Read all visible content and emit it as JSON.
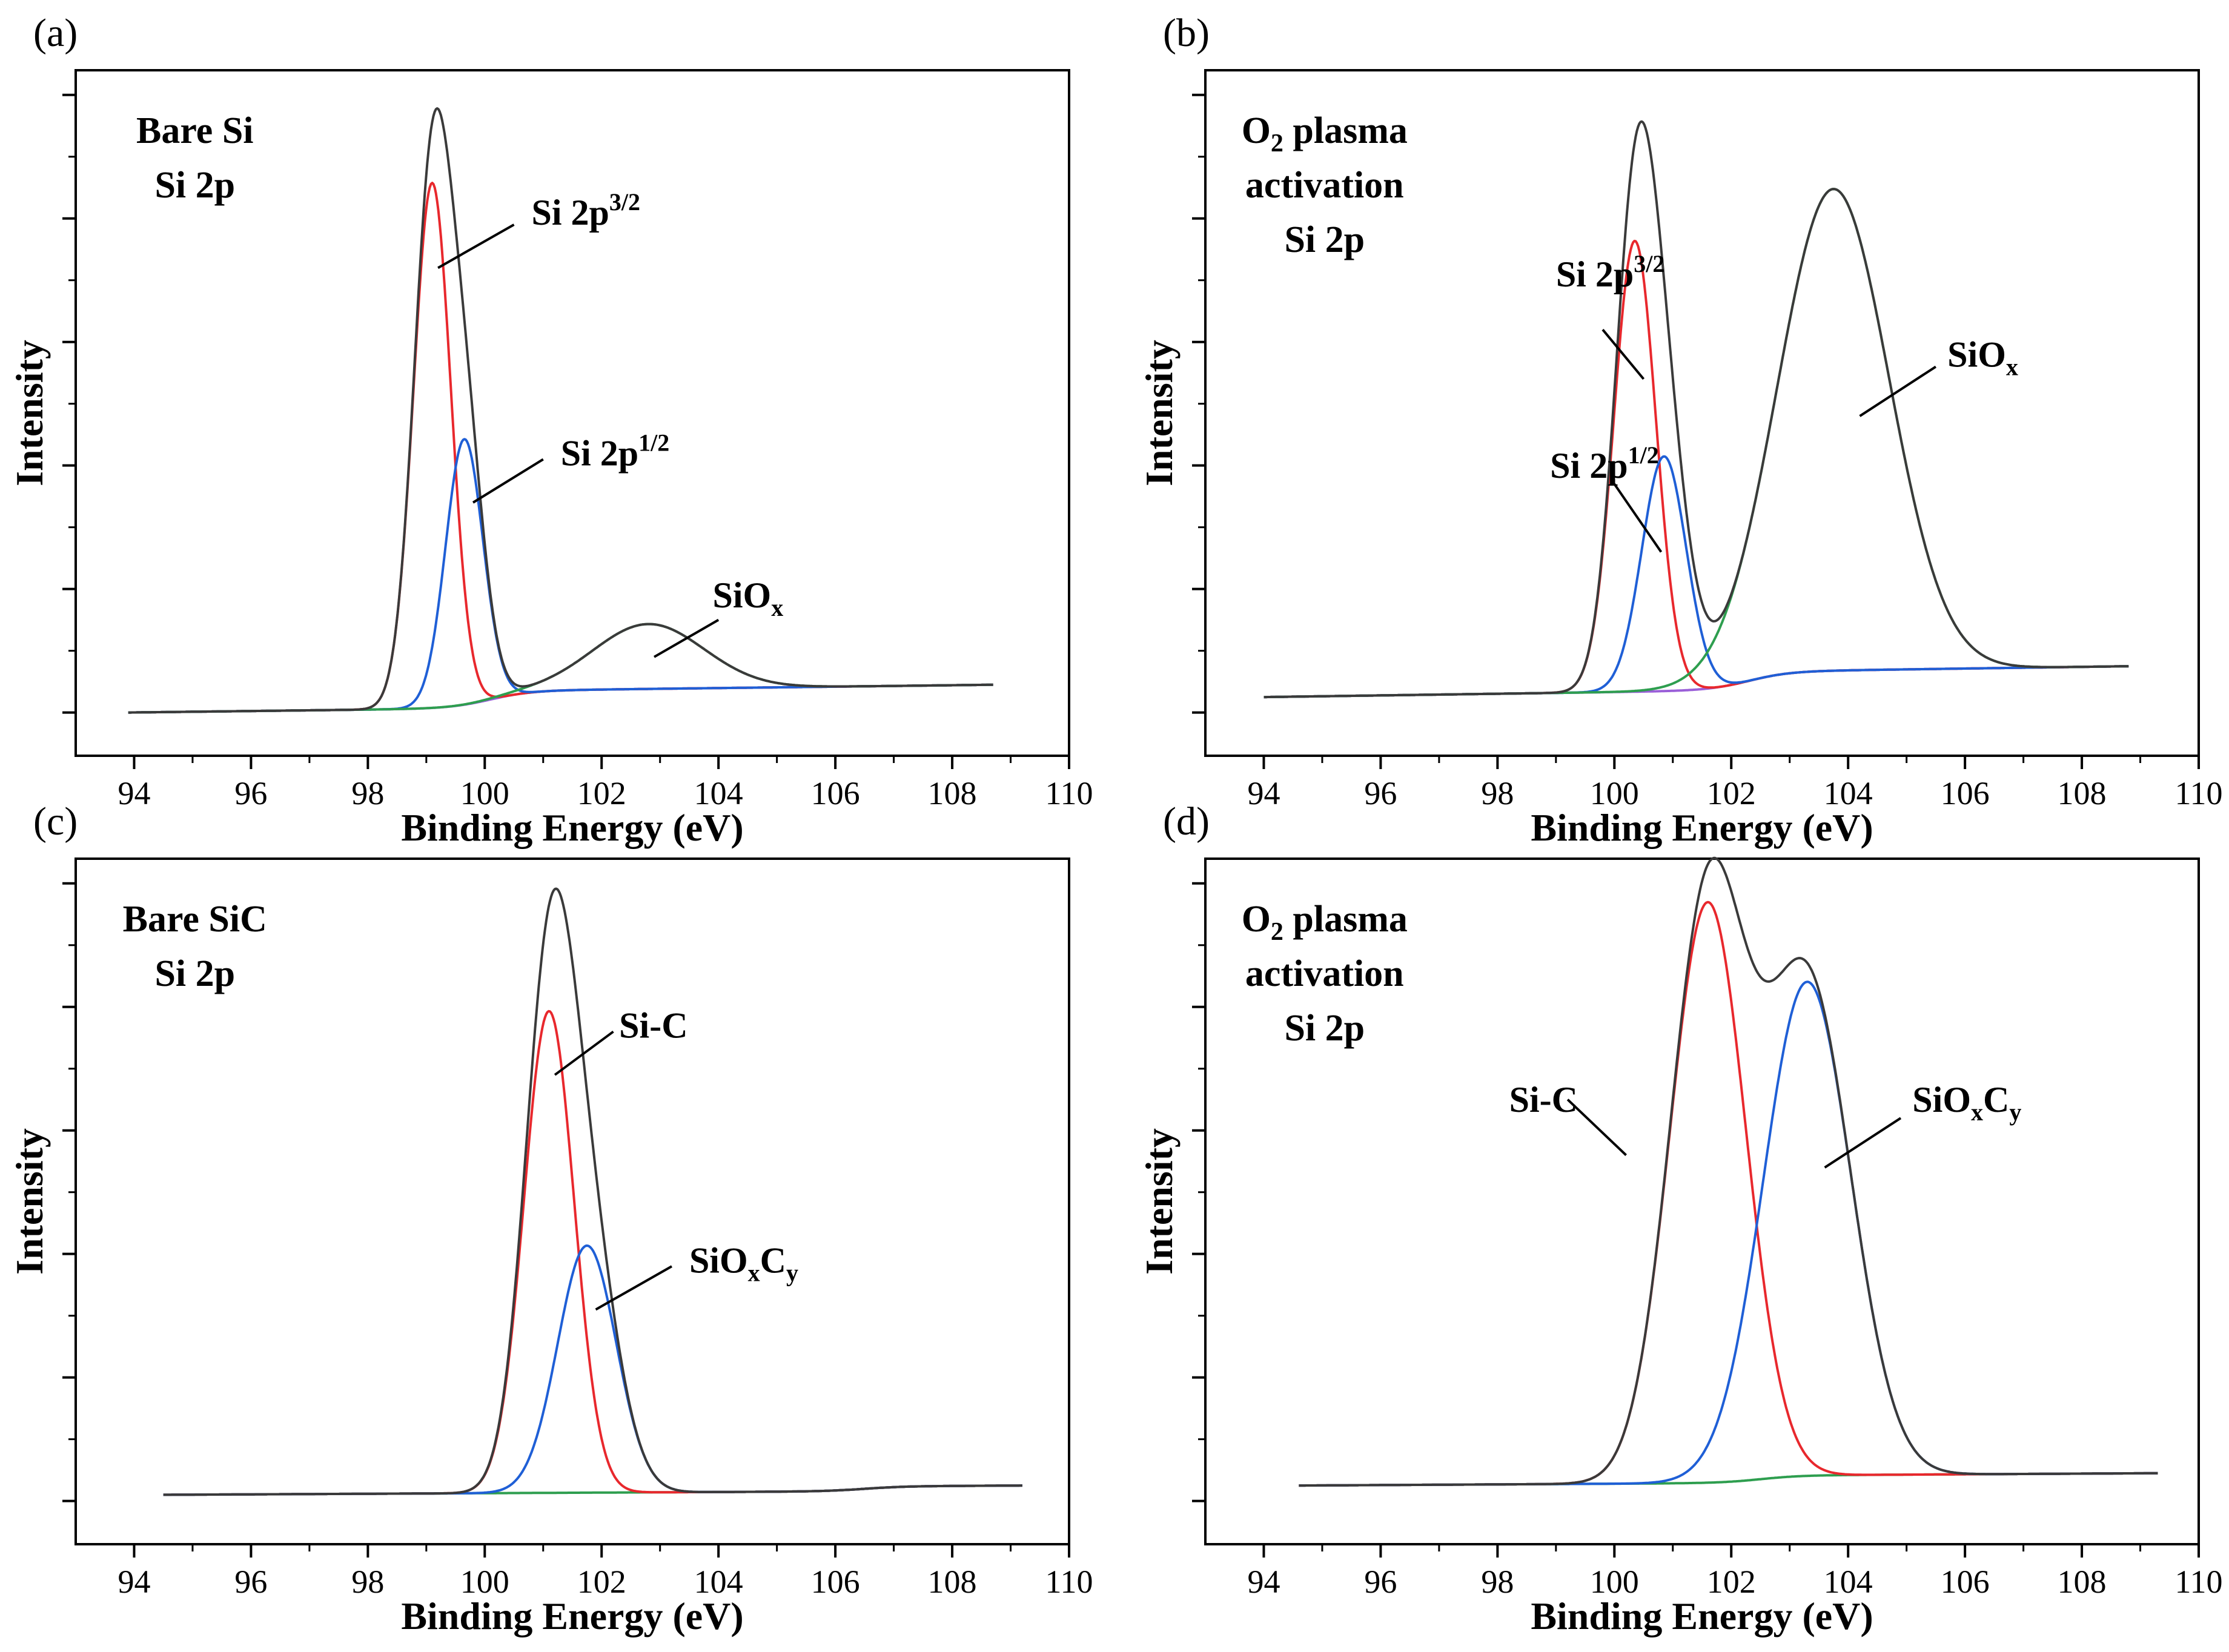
{
  "chart_data": [
    {
      "type": "line",
      "panel_label": "(a)",
      "title_lines": [
        "Bare Si",
        "Si 2p"
      ],
      "xlabel": "Binding Energy (eV)",
      "ylabel": "Intensity",
      "xlim": [
        93,
        110
      ],
      "ylim": [
        -0.06,
        1.05
      ],
      "xticks": [
        94,
        96,
        98,
        100,
        102,
        104,
        106,
        108,
        110
      ],
      "xtick_labels": [
        "94",
        "96",
        "98",
        "100",
        "102",
        "104",
        "106",
        "108",
        "110"
      ],
      "yticks": [
        0.01,
        0.21,
        0.41,
        0.61,
        0.81,
        1.01
      ],
      "x_range": [
        93.9,
        108.7
      ],
      "background": {
        "start": 0.01,
        "end": 0.055,
        "step_center": 100.1,
        "step": 0.028
      },
      "series": [
        {
          "name": "Si 2p3/2",
          "color": "#e8282d",
          "components": [
            {
              "center": 99.1,
              "amp": 0.85,
              "width": 0.32
            }
          ]
        },
        {
          "name": "Si 2p1/2",
          "color": "#1f5fd6",
          "components": [
            {
              "center": 99.65,
              "amp": 0.43,
              "width": 0.32
            }
          ]
        },
        {
          "name": "SiOx",
          "color": "#2e9e4f",
          "components": [
            {
              "center": 102.8,
              "amp": 0.105,
              "width": 0.95
            }
          ]
        },
        {
          "name": "Background",
          "color": "#9a5fd8",
          "components": []
        },
        {
          "name": "Envelope",
          "color": "#3a3a3a",
          "components": "sum"
        }
      ],
      "annotations": [
        {
          "base": "Si 2p",
          "sup": "3/2",
          "sub": "",
          "x": 100.8,
          "y": 0.8,
          "line": [
            [
              99.2,
              0.73
            ],
            [
              100.5,
              0.8
            ]
          ]
        },
        {
          "base": "Si 2p",
          "sup": "1/2",
          "sub": "",
          "x": 101.3,
          "y": 0.41,
          "line": [
            [
              99.8,
              0.35
            ],
            [
              101.0,
              0.42
            ]
          ]
        },
        {
          "base": "SiO",
          "sup": "",
          "sub": "x",
          "x": 103.9,
          "y": 0.18,
          "line": [
            [
              102.9,
              0.1
            ],
            [
              104.0,
              0.16
            ]
          ]
        }
      ]
    },
    {
      "type": "line",
      "panel_label": "(b)",
      "title_lines": [
        "O2 plasma",
        "activation",
        "Si 2p"
      ],
      "xlabel": "Binding Energy (eV)",
      "ylabel": "Intensity",
      "xlim": [
        93,
        110
      ],
      "ylim": [
        -0.06,
        1.05
      ],
      "xticks": [
        94,
        96,
        98,
        100,
        102,
        104,
        106,
        108,
        110
      ],
      "xtick_labels": [
        "94",
        "96",
        "98",
        "100",
        "102",
        "104",
        "106",
        "108",
        "110"
      ],
      "yticks": [
        0.01,
        0.21,
        0.41,
        0.61,
        0.81,
        1.01
      ],
      "x_range": [
        94.0,
        108.8
      ],
      "background": {
        "start": 0.035,
        "end": 0.085,
        "step_center": 102.3,
        "step": 0.03
      },
      "series": [
        {
          "name": "Si 2p3/2",
          "color": "#e8282d",
          "components": [
            {
              "center": 100.35,
              "amp": 0.73,
              "width": 0.36
            }
          ]
        },
        {
          "name": "Si 2p1/2",
          "color": "#1f5fd6",
          "components": [
            {
              "center": 100.85,
              "amp": 0.38,
              "width": 0.38
            }
          ]
        },
        {
          "name": "SiOx",
          "color": "#2e9e4f",
          "components": [
            {
              "center": 103.75,
              "amp": 0.78,
              "width": 0.95
            }
          ]
        },
        {
          "name": "Background",
          "color": "#9a5fd8",
          "components": []
        },
        {
          "name": "Envelope",
          "color": "#3a3a3a",
          "components": "sum"
        }
      ],
      "annotations": [
        {
          "base": "Si 2p",
          "sup": "3/2",
          "sub": "",
          "x": 99.0,
          "y": 0.7,
          "line": [
            [
              99.8,
              0.63
            ],
            [
              100.5,
              0.55
            ]
          ]
        },
        {
          "base": "Si 2p",
          "sup": "1/2",
          "sub": "",
          "x": 98.9,
          "y": 0.39,
          "line": [
            [
              100.0,
              0.38
            ],
            [
              100.8,
              0.27
            ]
          ]
        },
        {
          "base": "SiO",
          "sup": "",
          "sub": "x",
          "x": 105.7,
          "y": 0.57,
          "line": [
            [
              104.2,
              0.49
            ],
            [
              105.5,
              0.57
            ]
          ]
        }
      ],
      "title_subscript": {
        "line": 0,
        "after": "O",
        "text": "2"
      }
    },
    {
      "type": "line",
      "panel_label": "(c)",
      "title_lines": [
        "Bare SiC",
        "Si 2p"
      ],
      "xlabel": "Binding Energy (eV)",
      "ylabel": "Intensity",
      "xlim": [
        93,
        110
      ],
      "ylim": [
        -0.06,
        1.05
      ],
      "xticks": [
        94,
        96,
        98,
        100,
        102,
        104,
        106,
        108,
        110
      ],
      "xtick_labels": [
        "94",
        "96",
        "98",
        "100",
        "102",
        "104",
        "106",
        "108",
        "110"
      ],
      "yticks": [
        0.01,
        0.21,
        0.41,
        0.61,
        0.81,
        1.01
      ],
      "x_range": [
        94.5,
        109.2
      ],
      "background": {
        "start": 0.02,
        "end": 0.035,
        "step_center": 106.5,
        "step": 0.008
      },
      "series": [
        {
          "name": "Si-C",
          "color": "#e8282d",
          "components": [
            {
              "center": 101.1,
              "amp": 0.78,
              "width": 0.43
            }
          ]
        },
        {
          "name": "SiOxCy",
          "color": "#1f5fd6",
          "components": [
            {
              "center": 101.75,
              "amp": 0.4,
              "width": 0.5
            }
          ]
        },
        {
          "name": "Background",
          "color": "#2e9e4f",
          "components": []
        },
        {
          "name": "Envelope",
          "color": "#3a3a3a",
          "components": "sum"
        }
      ],
      "annotations": [
        {
          "base": "Si-C",
          "sup": "",
          "sub": "",
          "x": 102.3,
          "y": 0.76,
          "line": [
            [
              101.2,
              0.7
            ],
            [
              102.2,
              0.77
            ]
          ]
        },
        {
          "base": "SiO",
          "sup": "",
          "sub": "x",
          "sub2": "C",
          "sub3": "y",
          "x": 103.5,
          "y": 0.38,
          "line": [
            [
              101.9,
              0.32
            ],
            [
              103.2,
              0.39
            ]
          ]
        }
      ]
    },
    {
      "type": "line",
      "panel_label": "(d)",
      "title_lines": [
        "O2 plasma",
        "activation",
        "Si 2p"
      ],
      "xlabel": "Binding Energy (eV)",
      "ylabel": "Intensity",
      "xlim": [
        93,
        110
      ],
      "ylim": [
        -0.06,
        1.05
      ],
      "xticks": [
        94,
        96,
        98,
        100,
        102,
        104,
        106,
        108,
        110
      ],
      "xtick_labels": [
        "94",
        "96",
        "98",
        "100",
        "102",
        "104",
        "106",
        "108",
        "110"
      ],
      "yticks": [
        0.01,
        0.21,
        0.41,
        0.61,
        0.81,
        1.01
      ],
      "x_range": [
        94.6,
        109.3
      ],
      "background": {
        "start": 0.035,
        "end": 0.055,
        "step_center": 102.5,
        "step": 0.012
      },
      "series": [
        {
          "name": "Si-C",
          "color": "#e8282d",
          "components": [
            {
              "center": 101.6,
              "amp": 0.94,
              "width": 0.65
            }
          ]
        },
        {
          "name": "SiOxCy",
          "color": "#1f5fd6",
          "components": [
            {
              "center": 103.3,
              "amp": 0.8,
              "width": 0.75
            }
          ]
        },
        {
          "name": "Background",
          "color": "#2e9e4f",
          "components": []
        },
        {
          "name": "Envelope",
          "color": "#3a3a3a",
          "components": "sum"
        }
      ],
      "annotations": [
        {
          "base": "Si-C",
          "sup": "",
          "sub": "",
          "x": 98.2,
          "y": 0.64,
          "line": [
            [
              99.2,
              0.66
            ],
            [
              100.2,
              0.57
            ]
          ]
        },
        {
          "base": "SiO",
          "sup": "",
          "sub": "x",
          "sub2": "C",
          "sub3": "y",
          "x": 105.1,
          "y": 0.64,
          "line": [
            [
              103.6,
              0.55
            ],
            [
              104.9,
              0.63
            ]
          ]
        }
      ],
      "title_subscript": {
        "line": 0,
        "after": "O",
        "text": "2"
      }
    }
  ]
}
